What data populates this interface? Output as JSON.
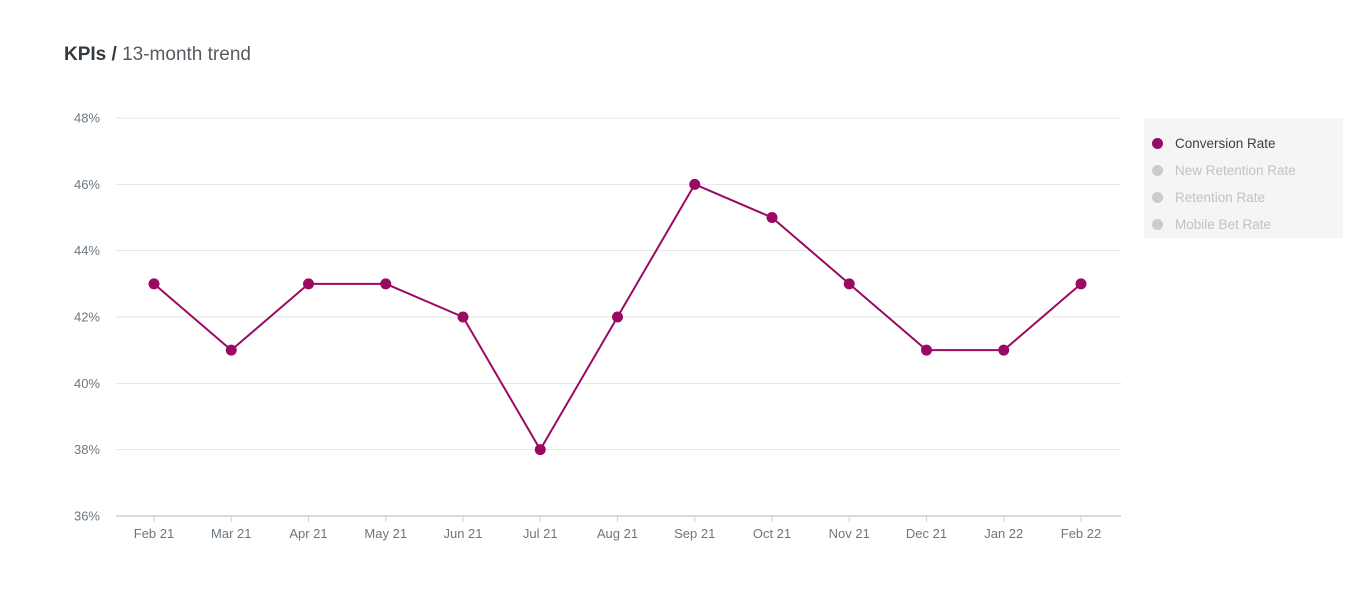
{
  "title": {
    "bold": "KPIs /",
    "rest": "13-month trend"
  },
  "chart_data": {
    "type": "line",
    "categories": [
      "Feb 21",
      "Mar 21",
      "Apr 21",
      "May 21",
      "Jun 21",
      "Jul 21",
      "Aug 21",
      "Sep 21",
      "Oct 21",
      "Nov 21",
      "Dec 21",
      "Jan 22",
      "Feb 22"
    ],
    "y_ticks": [
      "36%",
      "38%",
      "40%",
      "42%",
      "44%",
      "46%",
      "48%"
    ],
    "ylim": [
      36,
      48
    ],
    "grid": true,
    "legend_position": "right",
    "series": [
      {
        "name": "Conversion Rate",
        "color": "#9b0a62",
        "values": [
          43,
          41,
          43,
          43,
          42,
          38,
          42,
          46,
          45,
          43,
          41,
          41,
          43
        ]
      }
    ]
  },
  "legend": {
    "items": [
      {
        "label": "Conversion Rate",
        "color": "#9b0a62",
        "active": true
      },
      {
        "label": "New Retention Rate",
        "color": "#cccccc",
        "active": false
      },
      {
        "label": "Retention Rate",
        "color": "#cccccc",
        "active": false
      },
      {
        "label": "Mobile Bet Rate",
        "color": "#cccccc",
        "active": false
      }
    ]
  }
}
